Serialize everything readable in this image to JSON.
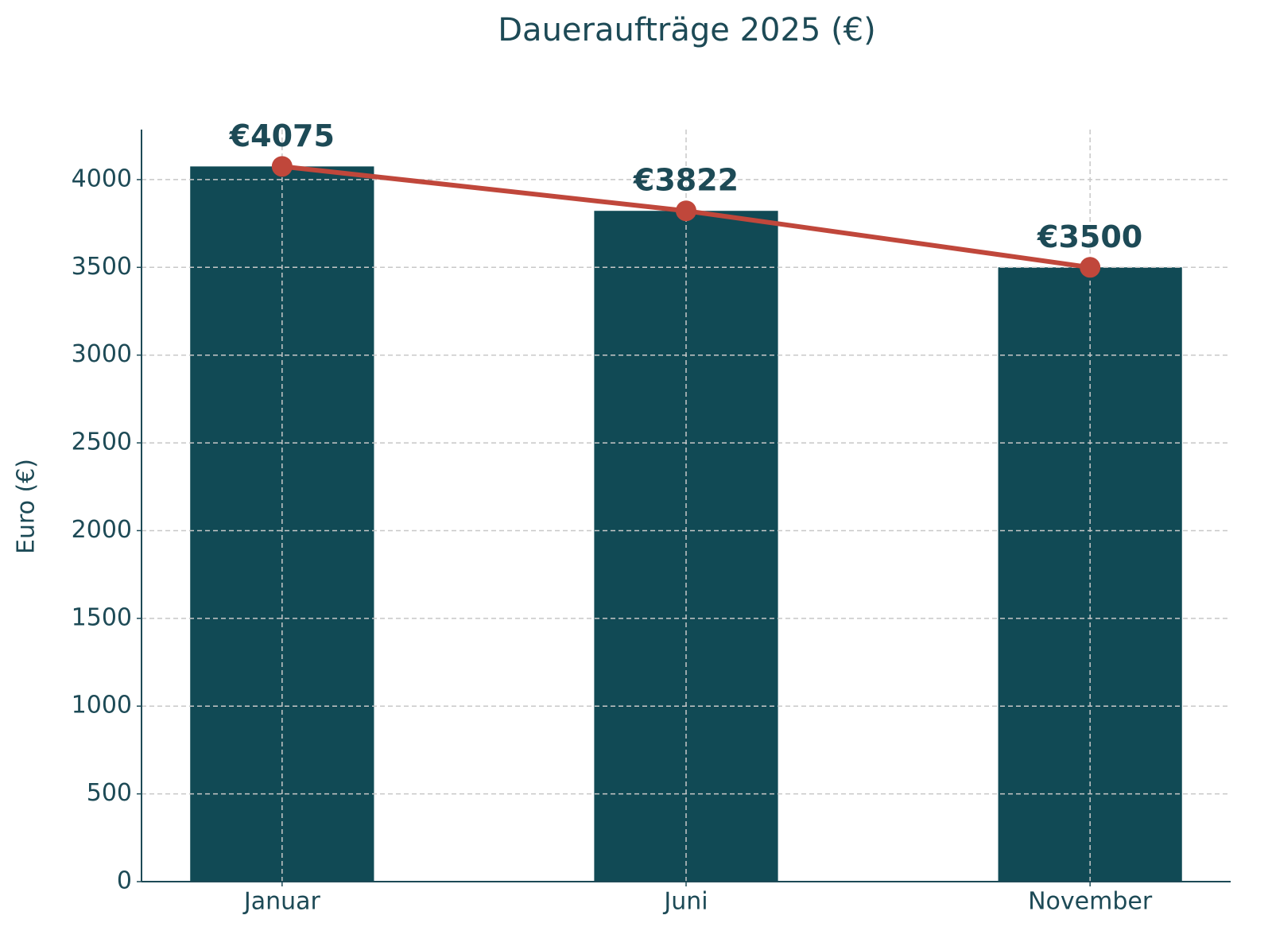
{
  "chart_data": {
    "type": "bar",
    "title": "Daueraufträge 2025 (€)",
    "y_label": "Euro (€)",
    "categories": [
      "Januar",
      "Juni",
      "November"
    ],
    "values": [
      4075,
      3822,
      3500
    ],
    "value_labels": [
      "€4075",
      "€3822",
      "€3500"
    ],
    "color": "#114a55",
    "line_color": "#c0473b",
    "ylim": [
      0,
      4285
    ],
    "yticks": [
      0,
      500,
      1000,
      1500,
      2000,
      2500,
      3000,
      3500,
      4000
    ],
    "grid": true
  }
}
